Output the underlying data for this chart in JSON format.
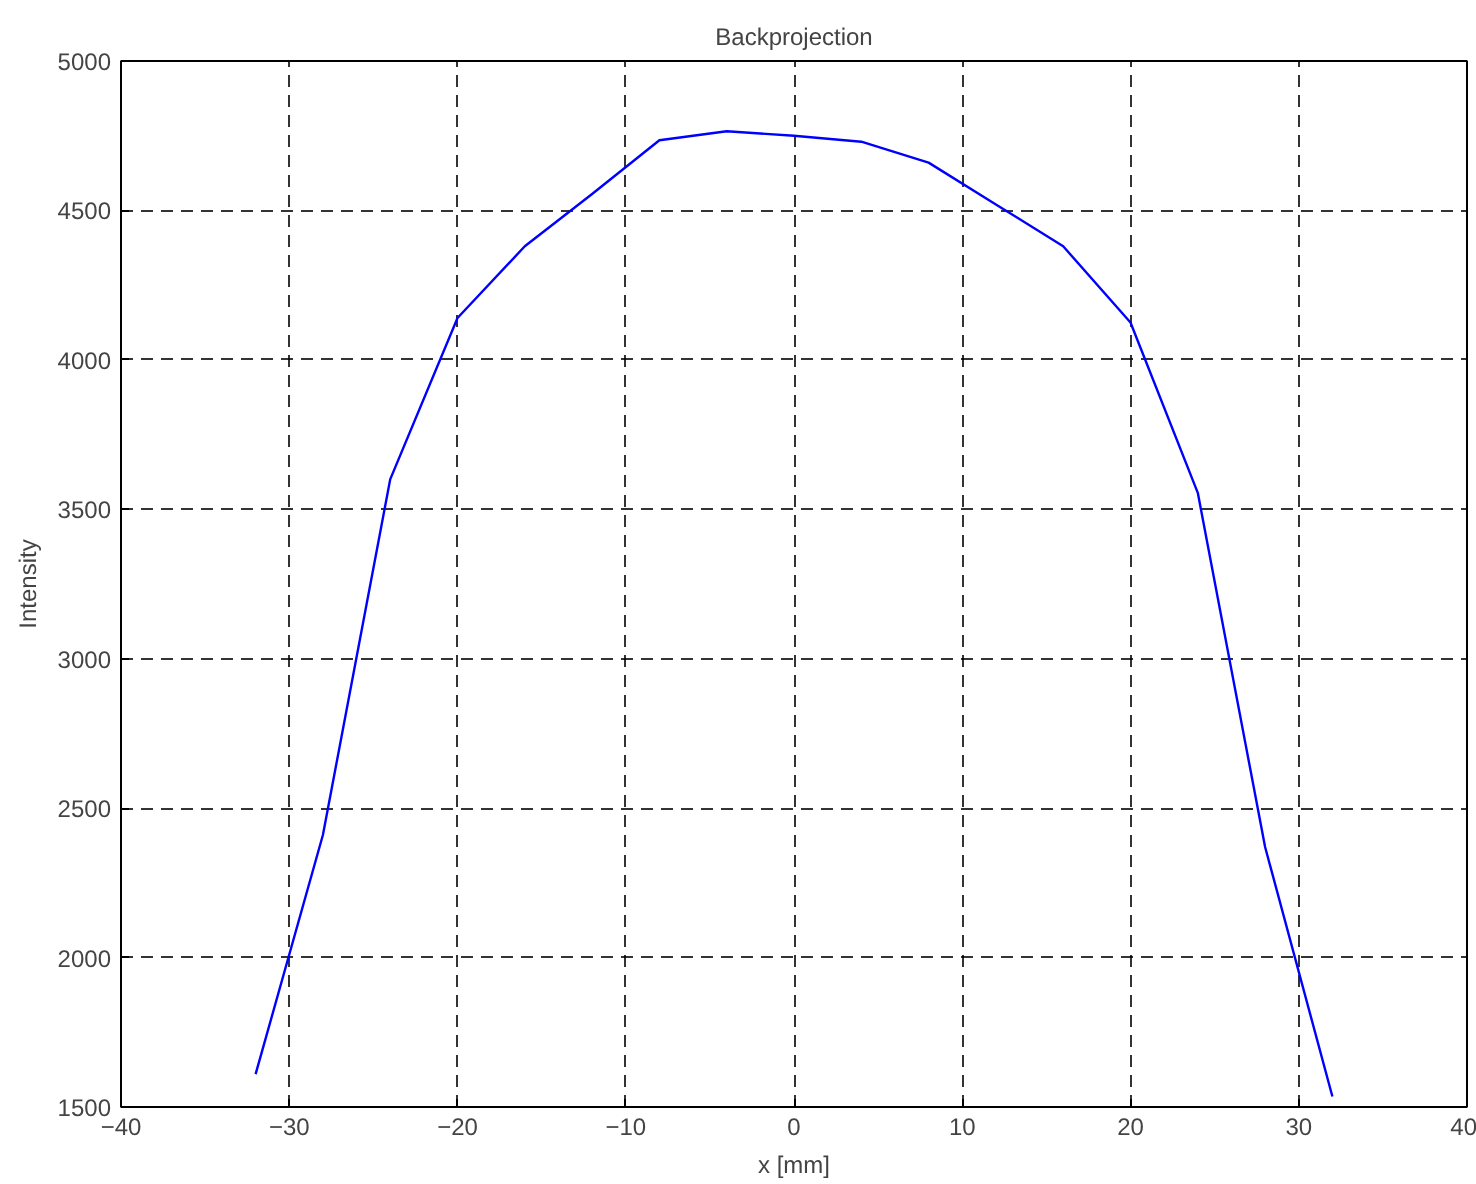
{
  "chart_data": {
    "type": "line",
    "title": "Backprojection",
    "xlabel": "x [mm]",
    "ylabel": "Intensity",
    "x": [
      -32,
      -28,
      -24,
      -20,
      -16,
      -12,
      -8,
      -4,
      0,
      4,
      8,
      12,
      16,
      20,
      24,
      28,
      32
    ],
    "series": [
      {
        "color": "#0000ff",
        "values": [
          1610,
          2410,
          3600,
          4140,
          4380,
          4555,
          4735,
          4765,
          4750,
          4730,
          4660,
          4520,
          4380,
          4125,
          3555,
          2370,
          1535
        ]
      }
    ],
    "xlim": [
      -40,
      40
    ],
    "xticks": [
      -40,
      -30,
      -20,
      -10,
      0,
      10,
      20,
      30,
      40
    ],
    "ylim": [
      1500,
      5000
    ],
    "yticks": [
      1500,
      2000,
      2500,
      3000,
      3500,
      4000,
      4500,
      5000
    ],
    "grid": true,
    "line_style": "solid",
    "marker": "none"
  }
}
